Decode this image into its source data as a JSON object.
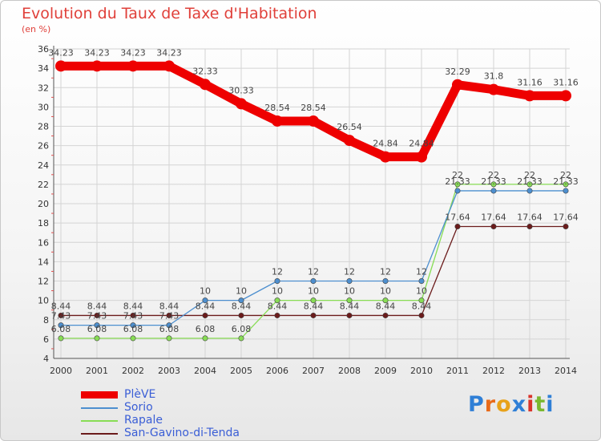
{
  "title": "Evolution du Taux de Taxe d'Habitation",
  "subtitle": "(en %)",
  "chart_data": {
    "type": "line",
    "x": [
      "2000",
      "2001",
      "2002",
      "2003",
      "2004",
      "2005",
      "2006",
      "2007",
      "2008",
      "2009",
      "2010",
      "2011",
      "2012",
      "2013",
      "2014"
    ],
    "ylim": [
      4,
      36
    ],
    "yticks": [
      4,
      6,
      8,
      10,
      12,
      14,
      16,
      18,
      20,
      22,
      24,
      26,
      28,
      30,
      32,
      34,
      36
    ],
    "grid": true,
    "legend_position": "bottom-left",
    "series": [
      {
        "name": "PlèVE",
        "color": "#ee0000",
        "values": [
          34.23,
          34.23,
          34.23,
          34.23,
          32.33,
          30.33,
          28.54,
          28.54,
          26.54,
          24.84,
          24.84,
          32.29,
          31.8,
          31.16,
          31.16
        ],
        "labels": [
          "34.23",
          "34.23",
          "34.23",
          "34.23",
          "32.33",
          "30.33",
          "28.54",
          "28.54",
          "26.54",
          "24.84",
          "24.84",
          "32.29",
          "31.8",
          "31.16",
          "31.16"
        ]
      },
      {
        "name": "Sorio",
        "color": "#4d8fcf",
        "values": [
          7.43,
          7.43,
          7.43,
          7.43,
          10,
          10,
          12,
          12,
          12,
          12,
          12,
          21.33,
          21.33,
          21.33,
          21.33
        ],
        "labels": [
          "7.43",
          "7.43",
          "7.43",
          "7.43",
          "10",
          "10",
          "12",
          "12",
          "12",
          "12",
          "12",
          "21.33",
          "21.33",
          "21.33",
          "21.33"
        ]
      },
      {
        "name": "Rapale",
        "color": "#88dd55",
        "values": [
          6.08,
          6.08,
          6.08,
          6.08,
          6.08,
          6.08,
          10,
          10,
          10,
          10,
          10,
          22,
          22,
          22,
          22
        ],
        "labels": [
          "6.08",
          "6.08",
          "6.08",
          "6.08",
          "6.08",
          "6.08",
          "10",
          "10",
          "10",
          "10",
          "10",
          "22",
          "22",
          "22",
          "22"
        ]
      },
      {
        "name": "San-Gavino-di-Tenda",
        "color": "#6b1b1b",
        "values": [
          8.44,
          8.44,
          8.44,
          8.44,
          8.44,
          8.44,
          8.44,
          8.44,
          8.44,
          8.44,
          8.44,
          17.64,
          17.64,
          17.64,
          17.64
        ],
        "labels": [
          "8.44",
          "8.44",
          "8.44",
          "8.44",
          "8.44",
          "8.44",
          "8.44",
          "8.44",
          "8.44",
          "8.44",
          "8.44",
          "17.64",
          "17.64",
          "17.64",
          "17.64"
        ]
      }
    ]
  },
  "logo": {
    "text": "Proxiti"
  }
}
